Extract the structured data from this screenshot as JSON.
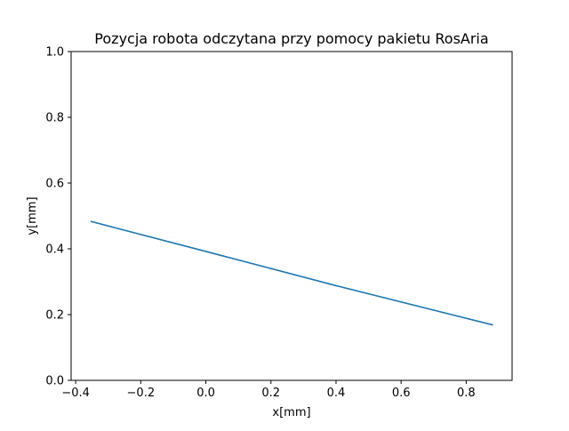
{
  "chart_data": {
    "type": "line",
    "title": "Pozycja robota odczytana przy pomocy pakietu RosAria",
    "xlabel": "x[mm]",
    "ylabel": "y[mm]",
    "xlim": [
      -0.414,
      0.941
    ],
    "ylim": [
      0.0,
      1.0
    ],
    "xticks": [
      -0.4,
      -0.2,
      0.0,
      0.2,
      0.4,
      0.6,
      0.8
    ],
    "xtick_labels": [
      "−0.4",
      "−0.2",
      "0.0",
      "0.2",
      "0.4",
      "0.6",
      "0.8"
    ],
    "yticks": [
      0.0,
      0.2,
      0.4,
      0.6,
      0.8,
      1.0
    ],
    "ytick_labels": [
      "0.0",
      "0.2",
      "0.4",
      "0.6",
      "0.8",
      "1.0"
    ],
    "grid": false,
    "series": [
      {
        "color": "#1f77b4",
        "x": [
          -0.352,
          0.0,
          0.4,
          0.88
        ],
        "y": [
          0.483,
          0.392,
          0.288,
          0.169
        ]
      }
    ]
  }
}
